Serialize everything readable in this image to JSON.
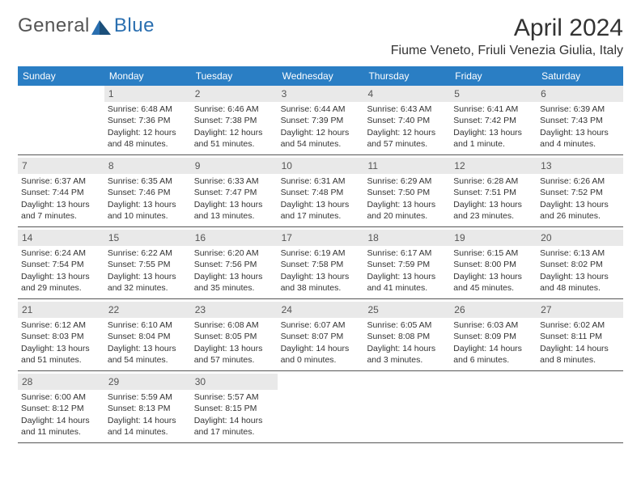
{
  "brand": {
    "name": "General",
    "accent": "Blue"
  },
  "title": "April 2024",
  "location": "Fiume Veneto, Friuli Venezia Giulia, Italy",
  "colors": {
    "header_bg": "#2a7ec4",
    "daynum_bg": "#e9e9e9",
    "text": "#333333",
    "rule": "#555555"
  },
  "weekdays": [
    "Sunday",
    "Monday",
    "Tuesday",
    "Wednesday",
    "Thursday",
    "Friday",
    "Saturday"
  ],
  "weeks": [
    [
      null,
      {
        "n": "1",
        "sr": "Sunrise: 6:48 AM",
        "ss": "Sunset: 7:36 PM",
        "dl": "Daylight: 12 hours and 48 minutes."
      },
      {
        "n": "2",
        "sr": "Sunrise: 6:46 AM",
        "ss": "Sunset: 7:38 PM",
        "dl": "Daylight: 12 hours and 51 minutes."
      },
      {
        "n": "3",
        "sr": "Sunrise: 6:44 AM",
        "ss": "Sunset: 7:39 PM",
        "dl": "Daylight: 12 hours and 54 minutes."
      },
      {
        "n": "4",
        "sr": "Sunrise: 6:43 AM",
        "ss": "Sunset: 7:40 PM",
        "dl": "Daylight: 12 hours and 57 minutes."
      },
      {
        "n": "5",
        "sr": "Sunrise: 6:41 AM",
        "ss": "Sunset: 7:42 PM",
        "dl": "Daylight: 13 hours and 1 minute."
      },
      {
        "n": "6",
        "sr": "Sunrise: 6:39 AM",
        "ss": "Sunset: 7:43 PM",
        "dl": "Daylight: 13 hours and 4 minutes."
      }
    ],
    [
      {
        "n": "7",
        "sr": "Sunrise: 6:37 AM",
        "ss": "Sunset: 7:44 PM",
        "dl": "Daylight: 13 hours and 7 minutes."
      },
      {
        "n": "8",
        "sr": "Sunrise: 6:35 AM",
        "ss": "Sunset: 7:46 PM",
        "dl": "Daylight: 13 hours and 10 minutes."
      },
      {
        "n": "9",
        "sr": "Sunrise: 6:33 AM",
        "ss": "Sunset: 7:47 PM",
        "dl": "Daylight: 13 hours and 13 minutes."
      },
      {
        "n": "10",
        "sr": "Sunrise: 6:31 AM",
        "ss": "Sunset: 7:48 PM",
        "dl": "Daylight: 13 hours and 17 minutes."
      },
      {
        "n": "11",
        "sr": "Sunrise: 6:29 AM",
        "ss": "Sunset: 7:50 PM",
        "dl": "Daylight: 13 hours and 20 minutes."
      },
      {
        "n": "12",
        "sr": "Sunrise: 6:28 AM",
        "ss": "Sunset: 7:51 PM",
        "dl": "Daylight: 13 hours and 23 minutes."
      },
      {
        "n": "13",
        "sr": "Sunrise: 6:26 AM",
        "ss": "Sunset: 7:52 PM",
        "dl": "Daylight: 13 hours and 26 minutes."
      }
    ],
    [
      {
        "n": "14",
        "sr": "Sunrise: 6:24 AM",
        "ss": "Sunset: 7:54 PM",
        "dl": "Daylight: 13 hours and 29 minutes."
      },
      {
        "n": "15",
        "sr": "Sunrise: 6:22 AM",
        "ss": "Sunset: 7:55 PM",
        "dl": "Daylight: 13 hours and 32 minutes."
      },
      {
        "n": "16",
        "sr": "Sunrise: 6:20 AM",
        "ss": "Sunset: 7:56 PM",
        "dl": "Daylight: 13 hours and 35 minutes."
      },
      {
        "n": "17",
        "sr": "Sunrise: 6:19 AM",
        "ss": "Sunset: 7:58 PM",
        "dl": "Daylight: 13 hours and 38 minutes."
      },
      {
        "n": "18",
        "sr": "Sunrise: 6:17 AM",
        "ss": "Sunset: 7:59 PM",
        "dl": "Daylight: 13 hours and 41 minutes."
      },
      {
        "n": "19",
        "sr": "Sunrise: 6:15 AM",
        "ss": "Sunset: 8:00 PM",
        "dl": "Daylight: 13 hours and 45 minutes."
      },
      {
        "n": "20",
        "sr": "Sunrise: 6:13 AM",
        "ss": "Sunset: 8:02 PM",
        "dl": "Daylight: 13 hours and 48 minutes."
      }
    ],
    [
      {
        "n": "21",
        "sr": "Sunrise: 6:12 AM",
        "ss": "Sunset: 8:03 PM",
        "dl": "Daylight: 13 hours and 51 minutes."
      },
      {
        "n": "22",
        "sr": "Sunrise: 6:10 AM",
        "ss": "Sunset: 8:04 PM",
        "dl": "Daylight: 13 hours and 54 minutes."
      },
      {
        "n": "23",
        "sr": "Sunrise: 6:08 AM",
        "ss": "Sunset: 8:05 PM",
        "dl": "Daylight: 13 hours and 57 minutes."
      },
      {
        "n": "24",
        "sr": "Sunrise: 6:07 AM",
        "ss": "Sunset: 8:07 PM",
        "dl": "Daylight: 14 hours and 0 minutes."
      },
      {
        "n": "25",
        "sr": "Sunrise: 6:05 AM",
        "ss": "Sunset: 8:08 PM",
        "dl": "Daylight: 14 hours and 3 minutes."
      },
      {
        "n": "26",
        "sr": "Sunrise: 6:03 AM",
        "ss": "Sunset: 8:09 PM",
        "dl": "Daylight: 14 hours and 6 minutes."
      },
      {
        "n": "27",
        "sr": "Sunrise: 6:02 AM",
        "ss": "Sunset: 8:11 PM",
        "dl": "Daylight: 14 hours and 8 minutes."
      }
    ],
    [
      {
        "n": "28",
        "sr": "Sunrise: 6:00 AM",
        "ss": "Sunset: 8:12 PM",
        "dl": "Daylight: 14 hours and 11 minutes."
      },
      {
        "n": "29",
        "sr": "Sunrise: 5:59 AM",
        "ss": "Sunset: 8:13 PM",
        "dl": "Daylight: 14 hours and 14 minutes."
      },
      {
        "n": "30",
        "sr": "Sunrise: 5:57 AM",
        "ss": "Sunset: 8:15 PM",
        "dl": "Daylight: 14 hours and 17 minutes."
      },
      null,
      null,
      null,
      null
    ]
  ]
}
